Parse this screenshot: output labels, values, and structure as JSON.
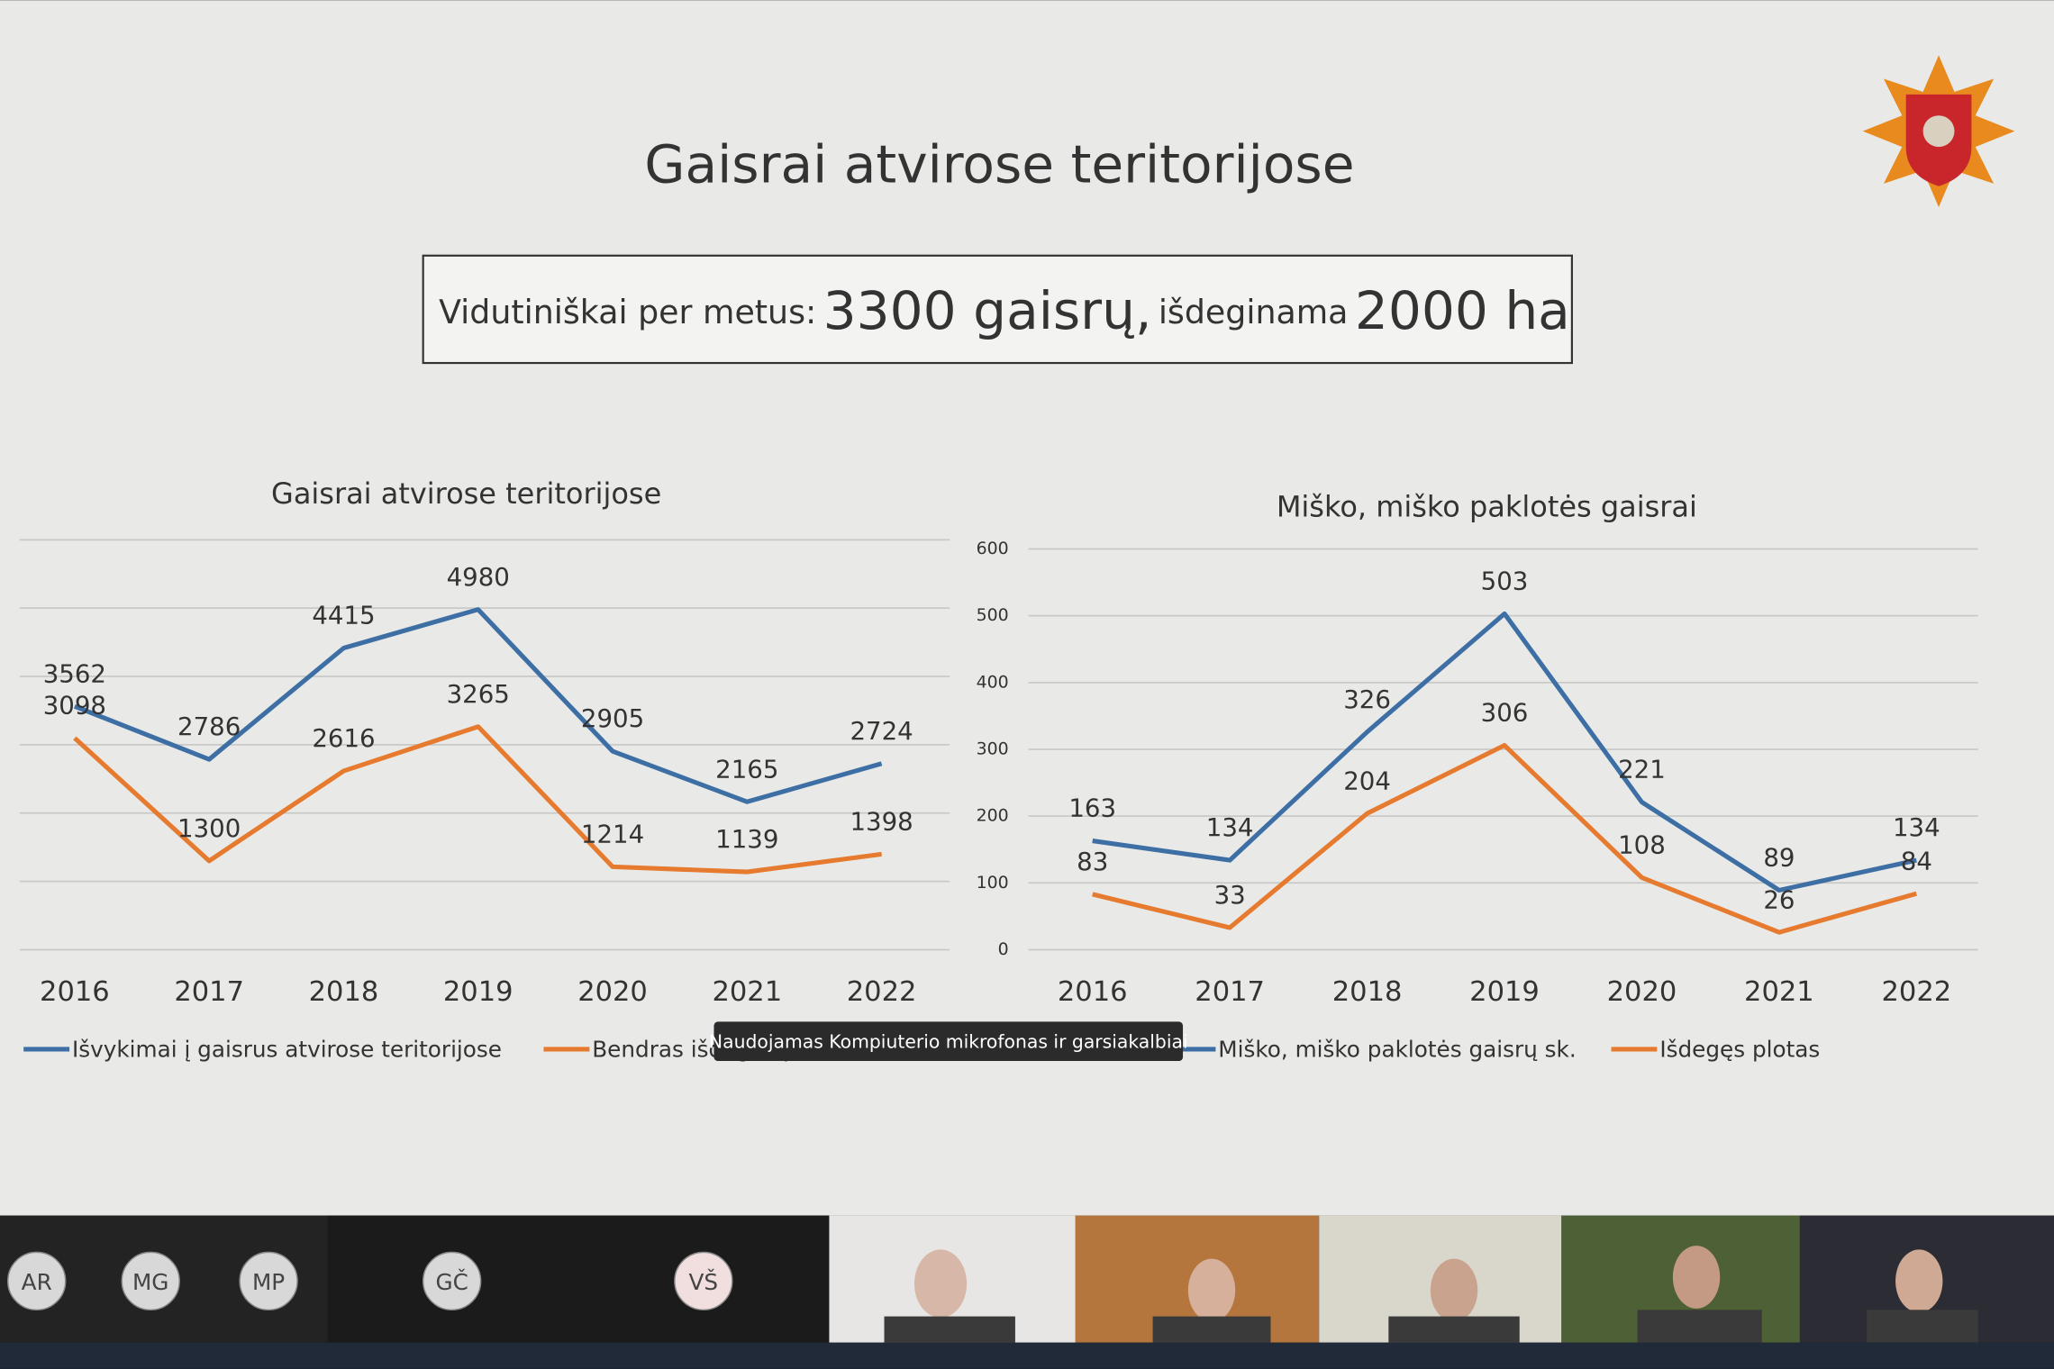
{
  "slide": {
    "title": "Gaisrai atvirose teritorijose",
    "summary": {
      "label": "Vidutiniškai per metus:",
      "fires": "3300 gaisrų,",
      "burned_label": "išdeginama",
      "area": "2000 ha"
    }
  },
  "chart_data": [
    {
      "type": "line",
      "title": "Gaisrai atvirose teritorijose",
      "categories": [
        "2016",
        "2017",
        "2018",
        "2019",
        "2020",
        "2021",
        "2022"
      ],
      "series": [
        {
          "name": "Išvykimai į gaisrus atvirose teritorijose",
          "color": "#3d6fa5",
          "values": [
            3562,
            2786,
            4415,
            4980,
            2905,
            2165,
            2724
          ]
        },
        {
          "name": "Bendras išdegęs plotas, ha",
          "color": "#e67a2e",
          "values": [
            3098,
            1300,
            2616,
            3265,
            1214,
            1139,
            1398
          ]
        }
      ],
      "ylim": [
        0,
        6000
      ],
      "yticks": [
        0,
        1000,
        2000,
        3000,
        4000,
        5000,
        6000
      ],
      "ytick_labels": false,
      "grid": true,
      "legend": "bottom"
    },
    {
      "type": "line",
      "title": "Miško, miško paklotės gaisrai",
      "categories": [
        "2016",
        "2017",
        "2018",
        "2019",
        "2020",
        "2021",
        "2022"
      ],
      "series": [
        {
          "name": "Miško, miško paklotės gaisrų sk.",
          "color": "#3d6fa5",
          "values": [
            163,
            134,
            326,
            503,
            221,
            89,
            134
          ]
        },
        {
          "name": "Išdegęs plotas",
          "color": "#e67a2e",
          "values": [
            83,
            33,
            204,
            306,
            108,
            26,
            84
          ]
        }
      ],
      "ylim": [
        0,
        600
      ],
      "yticks": [
        0,
        100,
        200,
        300,
        400,
        500,
        600
      ],
      "ytick_labels": true,
      "grid": true,
      "legend": "bottom"
    }
  ],
  "tooltip": "Naudojamas Kompiuterio mikrofonas ir garsiakalbiai",
  "participants": [
    "AR",
    "MG",
    "MP",
    "GČ",
    "VŠ"
  ]
}
